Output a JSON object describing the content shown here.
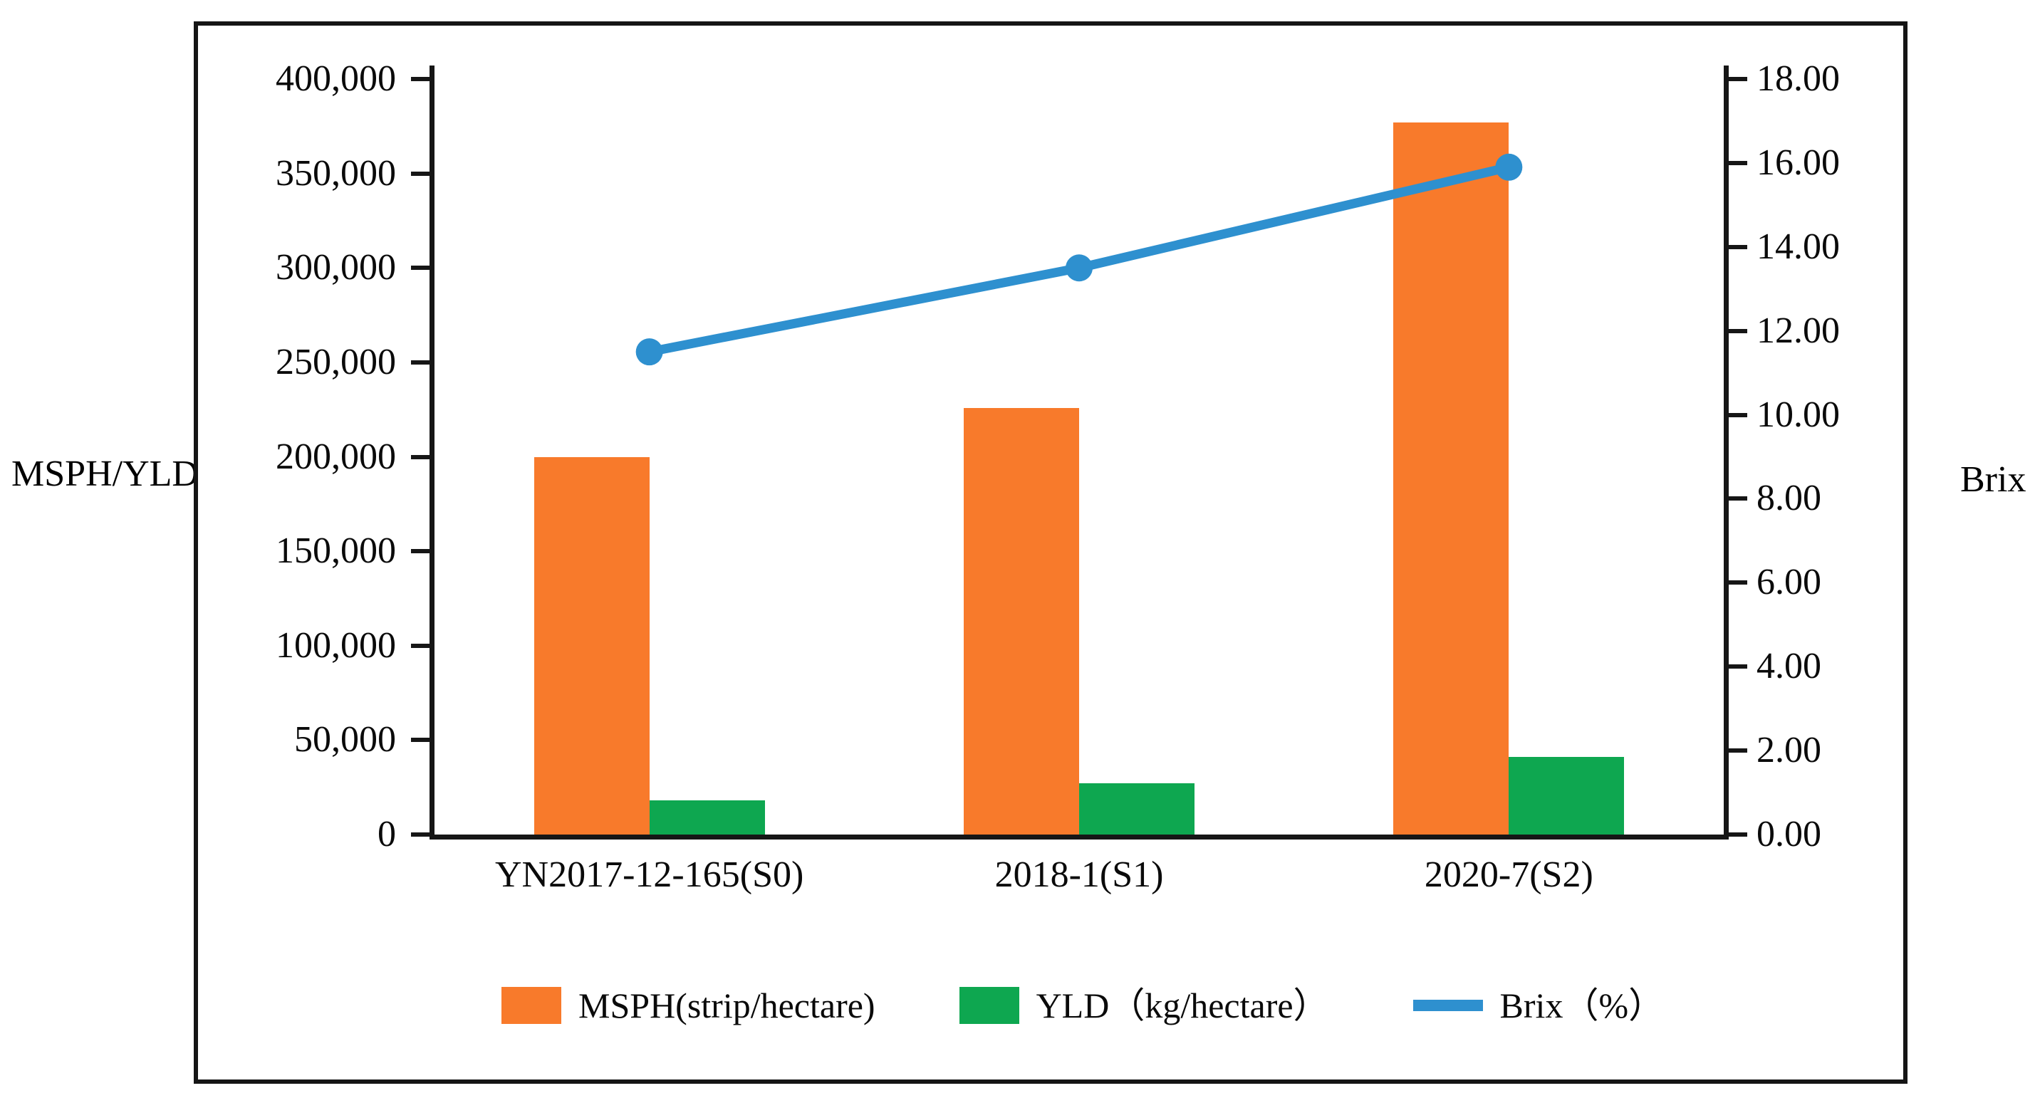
{
  "figure": {
    "left_axis_title": "MSPH/YLD",
    "right_axis_title": "Brix"
  },
  "chart_data": {
    "type": "combo-bar-line",
    "categories": [
      "YN2017-12-165(S0)",
      "2018-1(S1)",
      "2020-7(S2)"
    ],
    "series": [
      {
        "name": "MSPH(strip/hectare)",
        "type": "bar",
        "axis": "left",
        "color": "#f87a2b",
        "values": [
          200000,
          226000,
          377000
        ]
      },
      {
        "name": "YLD（kg/hectare）",
        "type": "bar",
        "axis": "left",
        "color": "#0ea750",
        "values": [
          18000,
          27000,
          41000
        ]
      },
      {
        "name": "Brix（%）",
        "type": "line",
        "axis": "right",
        "color": "#2e90cf",
        "values": [
          11.5,
          13.5,
          15.9
        ]
      }
    ],
    "left_axis": {
      "title": "MSPH/YLD",
      "min": 0,
      "max": 400000,
      "step": 50000,
      "tick_labels": [
        "400,000",
        "350,000",
        "300,000",
        "250,000",
        "200,000",
        "150,000",
        "100,000",
        "50,000",
        "0"
      ]
    },
    "right_axis": {
      "title": "Brix",
      "min": 0,
      "max": 18,
      "step": 2,
      "tick_labels": [
        "18.00",
        "16.00",
        "14.00",
        "12.00",
        "10.00",
        "8.00",
        "6.00",
        "4.00",
        "2.00",
        "0.00"
      ]
    },
    "legend": [
      {
        "label": "MSPH(strip/hectare)",
        "swatch": "square",
        "color": "#f87a2b"
      },
      {
        "label": "YLD（kg/hectare）",
        "swatch": "square",
        "color": "#0ea750"
      },
      {
        "label": "Brix（%）",
        "swatch": "line",
        "color": "#2e90cf"
      }
    ],
    "grid": false,
    "legend_position": "bottom"
  }
}
